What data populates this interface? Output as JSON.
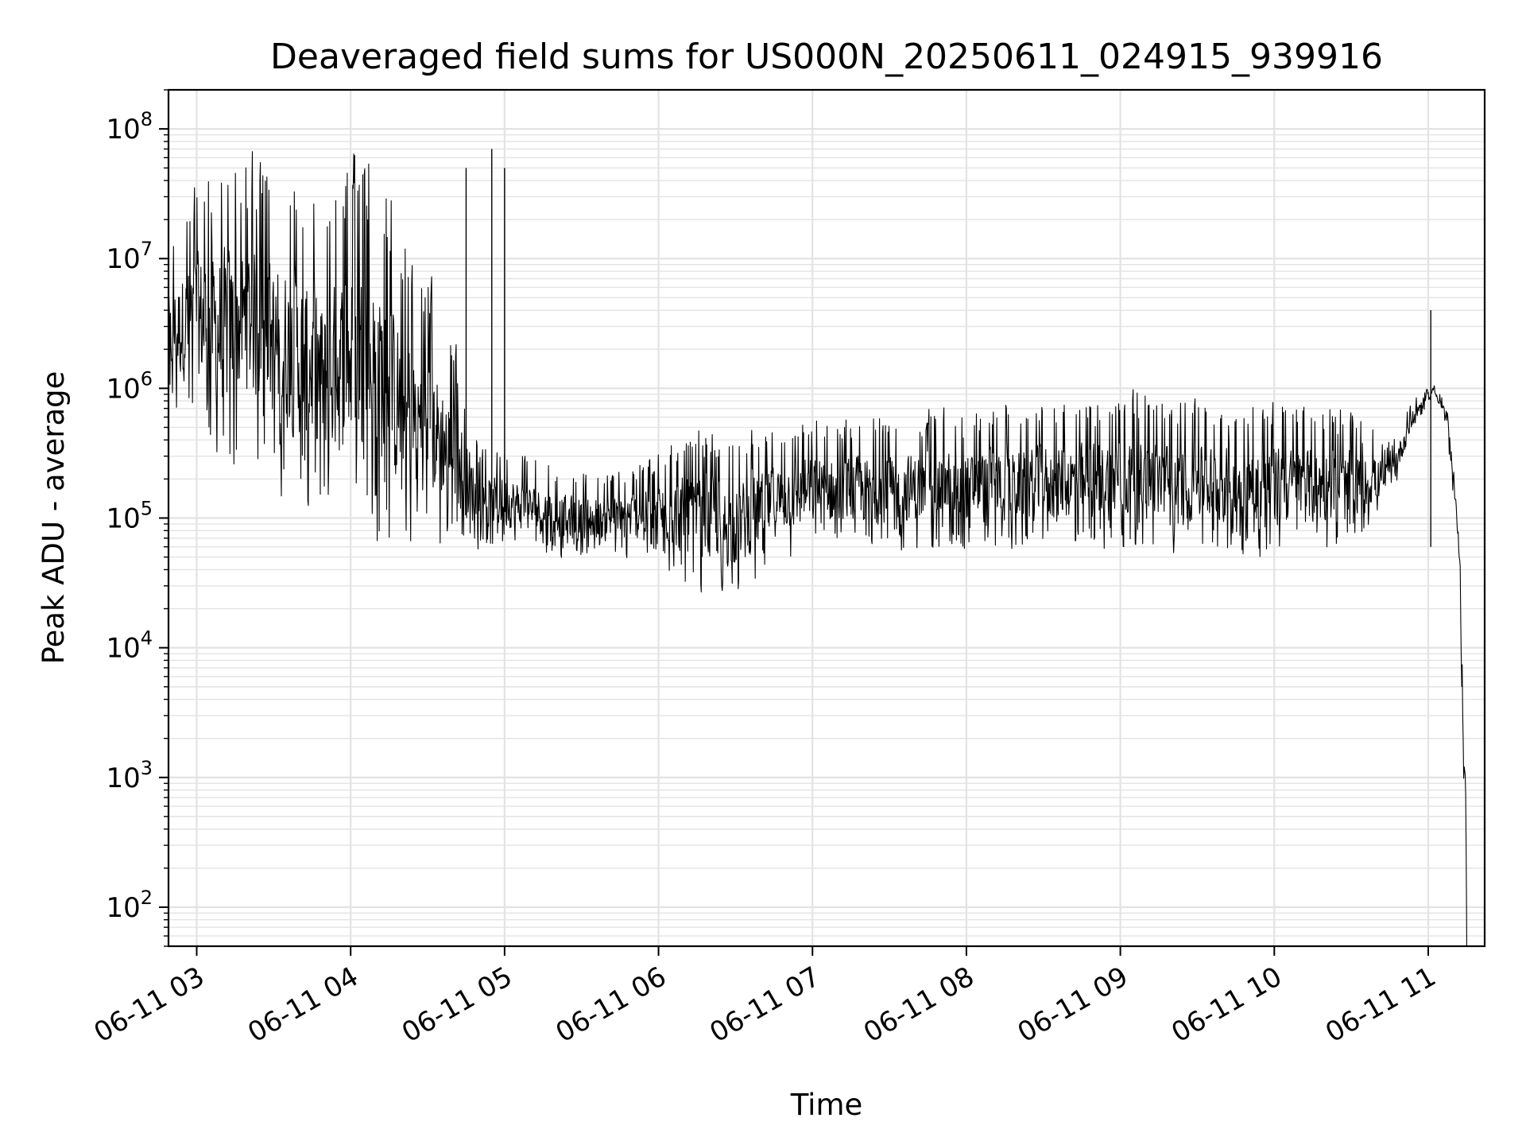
{
  "chart_data": {
    "type": "line",
    "title": "Deaveraged field sums for US000N_20250611_024915_939916",
    "xlabel": "Time",
    "ylabel": "Peak ADU - average",
    "yscale": "log",
    "ylim": [
      50,
      200000000
    ],
    "xlim": [
      "06-11 02:49",
      "06-11 11:22"
    ],
    "grid": true,
    "line_color": "#000000",
    "y_ticks": [
      {
        "value": 100,
        "base": "10",
        "exp": "2"
      },
      {
        "value": 1000,
        "base": "10",
        "exp": "3"
      },
      {
        "value": 10000,
        "base": "10",
        "exp": "4"
      },
      {
        "value": 100000,
        "base": "10",
        "exp": "5"
      },
      {
        "value": 1000000,
        "base": "10",
        "exp": "6"
      },
      {
        "value": 10000000,
        "base": "10",
        "exp": "7"
      },
      {
        "value": 100000000,
        "base": "10",
        "exp": "8"
      }
    ],
    "x_ticks": [
      {
        "time": "03:00",
        "label": "06-11 03"
      },
      {
        "time": "04:00",
        "label": "06-11 04"
      },
      {
        "time": "05:00",
        "label": "06-11 05"
      },
      {
        "time": "06:00",
        "label": "06-11 06"
      },
      {
        "time": "07:00",
        "label": "06-11 07"
      },
      {
        "time": "08:00",
        "label": "06-11 08"
      },
      {
        "time": "09:00",
        "label": "06-11 09"
      },
      {
        "time": "10:00",
        "label": "06-11 10"
      },
      {
        "time": "11:00",
        "label": "06-11 11"
      }
    ],
    "series": [
      {
        "color": "#000000",
        "envelope": [
          {
            "time": "02:49",
            "low": 600000,
            "high": 15000000
          },
          {
            "time": "03:00",
            "low": 400000,
            "high": 50000000
          },
          {
            "time": "03:10",
            "low": 150000,
            "high": 90000000
          },
          {
            "time": "03:20",
            "low": 250000,
            "high": 90000000
          },
          {
            "time": "03:30",
            "low": 150000,
            "high": 60000000
          },
          {
            "time": "03:40",
            "low": 100000,
            "high": 60000000
          },
          {
            "time": "03:50",
            "low": 70000,
            "high": 40000000
          },
          {
            "time": "04:00",
            "low": 60000,
            "high": 95000000
          },
          {
            "time": "04:10",
            "low": 50000,
            "high": 95000000
          },
          {
            "time": "04:20",
            "low": 40000,
            "high": 20000000
          },
          {
            "time": "04:30",
            "low": 45000,
            "high": 10000000
          },
          {
            "time": "04:40",
            "low": 50000,
            "high": 3000000
          },
          {
            "time": "04:50",
            "low": 55000,
            "high": 400000
          },
          {
            "time": "05:00",
            "low": 55000,
            "high": 400000
          },
          {
            "time": "05:15",
            "low": 50000,
            "high": 300000
          },
          {
            "time": "05:30",
            "low": 45000,
            "high": 250000
          },
          {
            "time": "05:45",
            "low": 45000,
            "high": 250000
          },
          {
            "time": "06:00",
            "low": 45000,
            "high": 350000
          },
          {
            "time": "06:10",
            "low": 25000,
            "high": 550000
          },
          {
            "time": "06:20",
            "low": 22000,
            "high": 550000
          },
          {
            "time": "06:30",
            "low": 20000,
            "high": 500000
          },
          {
            "time": "06:45",
            "low": 40000,
            "high": 600000
          },
          {
            "time": "07:00",
            "low": 50000,
            "high": 700000
          },
          {
            "time": "07:30",
            "low": 50000,
            "high": 700000
          },
          {
            "time": "08:00",
            "low": 50000,
            "high": 800000
          },
          {
            "time": "08:30",
            "low": 50000,
            "high": 900000
          },
          {
            "time": "09:00",
            "low": 50000,
            "high": 1100000
          },
          {
            "time": "09:30",
            "low": 50000,
            "high": 900000
          },
          {
            "time": "10:00",
            "low": 45000,
            "high": 900000
          },
          {
            "time": "10:30",
            "low": 50000,
            "high": 800000
          },
          {
            "time": "10:45",
            "low": 120000,
            "high": 400000
          },
          {
            "time": "10:55",
            "low": 500000,
            "high": 900000
          },
          {
            "time": "11:02",
            "low": 900000,
            "high": 1100000
          },
          {
            "time": "11:07",
            "low": 500000,
            "high": 800000
          },
          {
            "time": "11:12",
            "low": 50000,
            "high": 100000
          },
          {
            "time": "11:15",
            "low": 50,
            "high": 1000
          }
        ],
        "spikes": [
          {
            "time": "04:45",
            "value": 50000000
          },
          {
            "time": "04:55",
            "value": 70000000
          },
          {
            "time": "05:00",
            "value": 50000000
          },
          {
            "time": "11:01",
            "value": 4000000
          }
        ]
      }
    ]
  }
}
